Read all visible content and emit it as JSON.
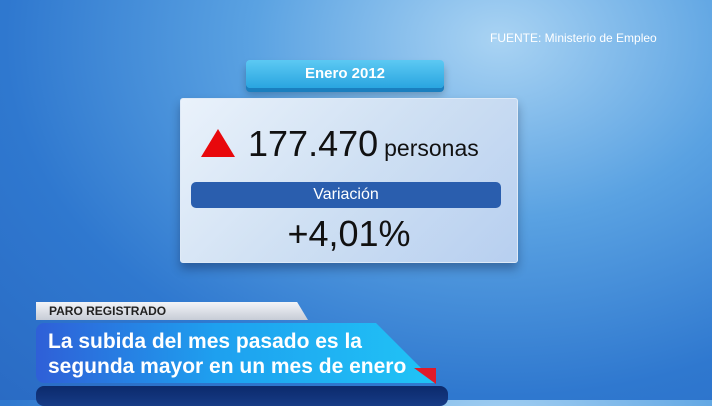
{
  "source": "FUENTE: Ministerio de Empleo",
  "card": {
    "period": "Enero 2012",
    "trend_icon": "triangle-up-red",
    "value": "177.470",
    "unit": "personas",
    "variation_label": "Variación",
    "variation_value": "+4,01%"
  },
  "lower_third": {
    "kicker": "PARO REGISTRADO",
    "headline_line1": "La subida del mes pasado es la",
    "headline_line2": "segunda mayor en un mes de enero"
  },
  "colors": {
    "up": "#e8080c",
    "variation_bar": "#2a5eae",
    "headline": "#1ea0ef"
  }
}
